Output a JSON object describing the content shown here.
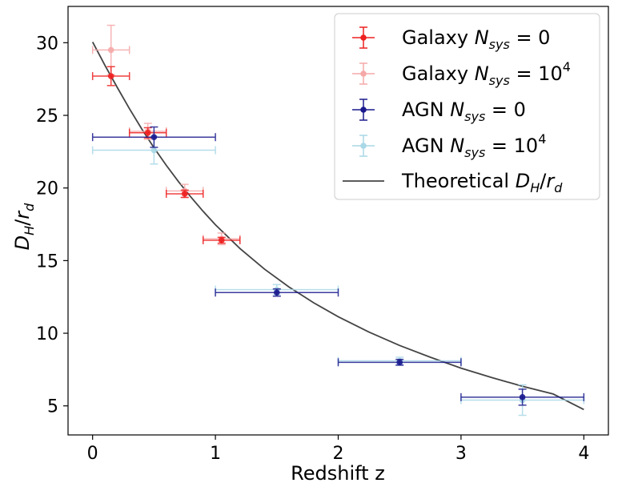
{
  "chart_data": {
    "type": "scatter",
    "title": "",
    "xlabel": "Redshift z",
    "ylabel": "D_H/r_d",
    "xlim": [
      -0.2,
      4.2
    ],
    "ylim": [
      3,
      32.5
    ],
    "xticks": [
      0,
      1,
      2,
      3,
      4
    ],
    "yticks": [
      5,
      10,
      15,
      20,
      25,
      30
    ],
    "grid": false,
    "legend_position": "top-right",
    "series": [
      {
        "name": "Galaxy N_sys = 0",
        "legend_prefix": "Galaxy",
        "legend_sup": "",
        "legend_value": "0",
        "color": "#ee2020",
        "points": [
          {
            "x": 0.15,
            "y": 27.7,
            "xerr": 0.15,
            "yerr": 0.65
          },
          {
            "x": 0.45,
            "y": 23.8,
            "xerr": 0.15,
            "yerr": 0.35
          },
          {
            "x": 0.75,
            "y": 19.6,
            "xerr": 0.15,
            "yerr": 0.25
          },
          {
            "x": 1.05,
            "y": 16.4,
            "xerr": 0.15,
            "yerr": 0.2
          }
        ]
      },
      {
        "name": "Galaxy N_sys = 10^4",
        "legend_prefix": "Galaxy",
        "legend_sup": "4",
        "legend_value": "10",
        "color": "#f5a8a8",
        "points": [
          {
            "x": 0.15,
            "y": 29.5,
            "xerr": 0.15,
            "yerr": 1.7
          },
          {
            "x": 0.45,
            "y": 23.9,
            "xerr": 0.15,
            "yerr": 0.55
          },
          {
            "x": 0.75,
            "y": 19.8,
            "xerr": 0.15,
            "yerr": 0.45
          },
          {
            "x": 1.05,
            "y": 16.5,
            "xerr": 0.15,
            "yerr": 0.4
          }
        ]
      },
      {
        "name": "AGN N_sys = 0",
        "legend_prefix": "AGN",
        "legend_sup": "",
        "legend_value": "0",
        "color": "#1a1a8e",
        "points": [
          {
            "x": 0.5,
            "y": 23.5,
            "xerr": 0.5,
            "yerr": 0.7
          },
          {
            "x": 1.5,
            "y": 12.8,
            "xerr": 0.5,
            "yerr": 0.25
          },
          {
            "x": 2.5,
            "y": 8.0,
            "xerr": 0.5,
            "yerr": 0.2
          },
          {
            "x": 3.5,
            "y": 5.6,
            "xerr": 0.5,
            "yerr": 0.55
          }
        ]
      },
      {
        "name": "AGN N_sys = 10^4",
        "legend_prefix": "AGN",
        "legend_sup": "4",
        "legend_value": "10",
        "color": "#a9d8e6",
        "points": [
          {
            "x": 0.5,
            "y": 22.6,
            "xerr": 0.5,
            "yerr": 0.95
          },
          {
            "x": 1.5,
            "y": 13.0,
            "xerr": 0.5,
            "yerr": 0.35
          },
          {
            "x": 2.5,
            "y": 8.1,
            "xerr": 0.5,
            "yerr": 0.25
          },
          {
            "x": 3.5,
            "y": 5.4,
            "xerr": 0.5,
            "yerr": 1.05
          }
        ]
      }
    ],
    "theory": {
      "name": "Theoretical D_H/r_d",
      "color": "#444444",
      "x": [
        0.0,
        0.1,
        0.2,
        0.3,
        0.4,
        0.5,
        0.6,
        0.7,
        0.8,
        0.9,
        1.0,
        1.2,
        1.4,
        1.6,
        1.8,
        2.0,
        2.25,
        2.5,
        2.75,
        3.0,
        3.25,
        3.5,
        3.75,
        4.0
      ],
      "y": [
        30.05,
        28.45,
        26.93,
        25.46,
        24.07,
        22.77,
        21.56,
        20.43,
        19.38,
        18.39,
        17.47,
        15.83,
        14.41,
        13.18,
        12.1,
        11.14,
        10.08,
        9.16,
        8.35,
        7.6,
        6.95,
        6.35,
        5.82,
        4.75
      ]
    }
  }
}
